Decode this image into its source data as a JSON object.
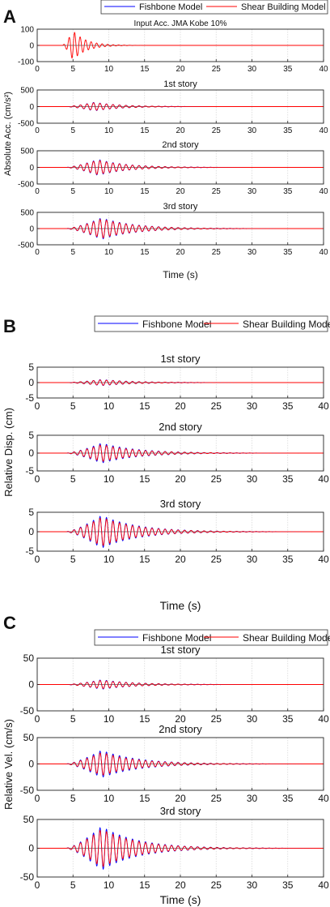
{
  "panels": [
    {
      "letter": "A",
      "legend": [
        "Fishbone Model",
        "Shear Building Model"
      ],
      "ylabel": "Absolute Acc. (cm/s²)",
      "xlabel": "Time (s)"
    },
    {
      "letter": "B",
      "legend": [
        "Fishbone Model",
        "Shear Building Model"
      ],
      "ylabel": "Relative Disp. (cm)",
      "xlabel": "Time (s)"
    },
    {
      "letter": "C",
      "legend": [
        "Fishbone Model",
        "Shear Building Model"
      ],
      "ylabel": "Relative Vel. (cm/s)",
      "xlabel": "Time (s)"
    }
  ],
  "colors": {
    "fishbone": "#0000ff",
    "shear": "#ff0000",
    "grid": "#d9d9d9"
  },
  "chart_data": [
    {
      "panel": "A",
      "type": "line",
      "title": "Input Acc. JMA Kobe 10%",
      "xlim": [
        0,
        40
      ],
      "xticks": [
        0,
        5,
        10,
        15,
        20,
        25,
        30,
        35,
        40
      ],
      "ylim": [
        -100,
        100
      ],
      "yticks": [
        -100,
        0,
        100
      ],
      "grid": true,
      "series": [
        {
          "name": "Shear Building Model",
          "peak": 90,
          "onset": 3.5,
          "peak_time": 5,
          "decay": 0.55,
          "freq": 1.3
        }
      ]
    },
    {
      "panel": "A",
      "type": "line",
      "title": "1st story",
      "xlim": [
        0,
        40
      ],
      "xticks": [
        0,
        5,
        10,
        15,
        20,
        25,
        30,
        35,
        40
      ],
      "ylim": [
        -500,
        500
      ],
      "yticks": [
        -500,
        0,
        500
      ],
      "grid": true,
      "series": [
        {
          "name": "Fishbone Model",
          "peak": 130,
          "onset": 4,
          "peak_time": 8,
          "decay": 0.28,
          "freq": 1.1
        },
        {
          "name": "Shear Building Model",
          "peak": 120,
          "onset": 4,
          "peak_time": 8,
          "decay": 0.28,
          "freq": 1.1
        }
      ]
    },
    {
      "panel": "A",
      "type": "line",
      "title": "2nd story",
      "xlim": [
        0,
        40
      ],
      "xticks": [
        0,
        5,
        10,
        15,
        20,
        25,
        30,
        35,
        40
      ],
      "ylim": [
        -500,
        500
      ],
      "yticks": [
        -500,
        0,
        500
      ],
      "grid": true,
      "series": [
        {
          "name": "Fishbone Model",
          "peak": 240,
          "onset": 4,
          "peak_time": 8.5,
          "decay": 0.25,
          "freq": 1.1
        },
        {
          "name": "Shear Building Model",
          "peak": 220,
          "onset": 4,
          "peak_time": 8.5,
          "decay": 0.25,
          "freq": 1.1
        }
      ]
    },
    {
      "panel": "A",
      "type": "line",
      "title": "3rd story",
      "xlim": [
        0,
        40
      ],
      "xticks": [
        0,
        5,
        10,
        15,
        20,
        25,
        30,
        35,
        40
      ],
      "ylim": [
        -500,
        500
      ],
      "yticks": [
        -500,
        0,
        500
      ],
      "grid": true,
      "series": [
        {
          "name": "Fishbone Model",
          "peak": 330,
          "onset": 4,
          "peak_time": 9,
          "decay": 0.22,
          "freq": 1.1
        },
        {
          "name": "Shear Building Model",
          "peak": 300,
          "onset": 4,
          "peak_time": 9,
          "decay": 0.22,
          "freq": 1.1
        }
      ]
    },
    {
      "panel": "B",
      "type": "line",
      "title": "1st story",
      "xlim": [
        0,
        40
      ],
      "xticks": [
        0,
        5,
        10,
        15,
        20,
        25,
        30,
        35,
        40
      ],
      "ylim": [
        -5,
        5
      ],
      "yticks": [
        -5,
        0,
        5
      ],
      "grid": true,
      "series": [
        {
          "name": "Fishbone Model",
          "peak": 1.0,
          "onset": 4,
          "peak_time": 9,
          "decay": 0.22,
          "freq": 1.1
        },
        {
          "name": "Shear Building Model",
          "peak": 0.9,
          "onset": 4,
          "peak_time": 9,
          "decay": 0.22,
          "freq": 1.1
        }
      ]
    },
    {
      "panel": "B",
      "type": "line",
      "title": "2nd story",
      "xlim": [
        0,
        40
      ],
      "xticks": [
        0,
        5,
        10,
        15,
        20,
        25,
        30,
        35,
        40
      ],
      "ylim": [
        -5,
        5
      ],
      "yticks": [
        -5,
        0,
        5
      ],
      "grid": true,
      "series": [
        {
          "name": "Fishbone Model",
          "peak": 2.8,
          "onset": 4,
          "peak_time": 9,
          "decay": 0.2,
          "freq": 1.1
        },
        {
          "name": "Shear Building Model",
          "peak": 2.4,
          "onset": 4,
          "peak_time": 9,
          "decay": 0.2,
          "freq": 1.1
        }
      ]
    },
    {
      "panel": "B",
      "type": "line",
      "title": "3rd story",
      "xlim": [
        0,
        40
      ],
      "xticks": [
        0,
        5,
        10,
        15,
        20,
        25,
        30,
        35,
        40
      ],
      "ylim": [
        -5,
        5
      ],
      "yticks": [
        -5,
        0,
        5
      ],
      "grid": true,
      "series": [
        {
          "name": "Fishbone Model",
          "peak": 4.2,
          "onset": 4,
          "peak_time": 9,
          "decay": 0.2,
          "freq": 1.1
        },
        {
          "name": "Shear Building Model",
          "peak": 3.7,
          "onset": 4,
          "peak_time": 9,
          "decay": 0.2,
          "freq": 1.1
        }
      ]
    },
    {
      "panel": "C",
      "type": "line",
      "title": "1st story",
      "xlim": [
        0,
        40
      ],
      "xticks": [
        0,
        5,
        10,
        15,
        20,
        25,
        30,
        35,
        40
      ],
      "ylim": [
        -50,
        50
      ],
      "yticks": [
        -50,
        0,
        50
      ],
      "grid": true,
      "series": [
        {
          "name": "Fishbone Model",
          "peak": 9,
          "onset": 4,
          "peak_time": 9,
          "decay": 0.22,
          "freq": 1.1
        },
        {
          "name": "Shear Building Model",
          "peak": 8,
          "onset": 4,
          "peak_time": 9,
          "decay": 0.22,
          "freq": 1.1
        }
      ]
    },
    {
      "panel": "C",
      "type": "line",
      "title": "2nd story",
      "xlim": [
        0,
        40
      ],
      "xticks": [
        0,
        5,
        10,
        15,
        20,
        25,
        30,
        35,
        40
      ],
      "ylim": [
        -50,
        50
      ],
      "yticks": [
        -50,
        0,
        50
      ],
      "grid": true,
      "series": [
        {
          "name": "Fishbone Model",
          "peak": 26,
          "onset": 4,
          "peak_time": 9,
          "decay": 0.2,
          "freq": 1.1
        },
        {
          "name": "Shear Building Model",
          "peak": 22,
          "onset": 4,
          "peak_time": 9,
          "decay": 0.2,
          "freq": 1.1
        }
      ]
    },
    {
      "panel": "C",
      "type": "line",
      "title": "3rd story",
      "xlim": [
        0,
        40
      ],
      "xticks": [
        0,
        5,
        10,
        15,
        20,
        25,
        30,
        35,
        40
      ],
      "ylim": [
        -50,
        50
      ],
      "yticks": [
        -50,
        0,
        50
      ],
      "grid": true,
      "series": [
        {
          "name": "Fishbone Model",
          "peak": 38,
          "onset": 4,
          "peak_time": 9,
          "decay": 0.2,
          "freq": 1.1
        },
        {
          "name": "Shear Building Model",
          "peak": 33,
          "onset": 4,
          "peak_time": 9,
          "decay": 0.2,
          "freq": 1.1
        }
      ]
    }
  ]
}
